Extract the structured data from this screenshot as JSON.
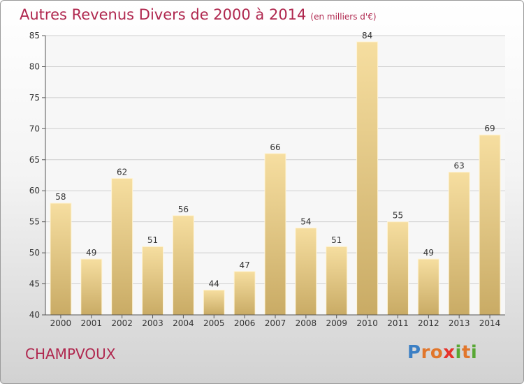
{
  "title": "Autres Revenus Divers de 2000 à 2014",
  "subtitle": "(en milliers d'€)",
  "commune": "CHAMPVOUX",
  "logo": {
    "text": "Proxiti",
    "letter_colors": [
      "#3b7fc4",
      "#e1762b",
      "#e1762b",
      "#e6322b",
      "#58a734",
      "#e1762b",
      "#58a734"
    ]
  },
  "colors": {
    "title": "#b0284f",
    "bar_light": "#f6dea0",
    "bar_dark": "#c9ab65",
    "grid": "#cfcfcf"
  },
  "chart_data": {
    "type": "bar",
    "title": "Autres Revenus Divers de 2000 à 2014",
    "subtitle": "(en milliers d'€)",
    "categories": [
      "2000",
      "2001",
      "2002",
      "2003",
      "2004",
      "2005",
      "2006",
      "2007",
      "2008",
      "2009",
      "2010",
      "2011",
      "2012",
      "2013",
      "2014"
    ],
    "values": [
      58,
      49,
      62,
      51,
      56,
      44,
      47,
      66,
      54,
      51,
      84,
      55,
      49,
      63,
      69
    ],
    "ylim": [
      40,
      85
    ],
    "yticks": [
      40,
      45,
      50,
      55,
      60,
      65,
      70,
      75,
      80,
      85
    ],
    "grid": true,
    "data_labels": true
  }
}
